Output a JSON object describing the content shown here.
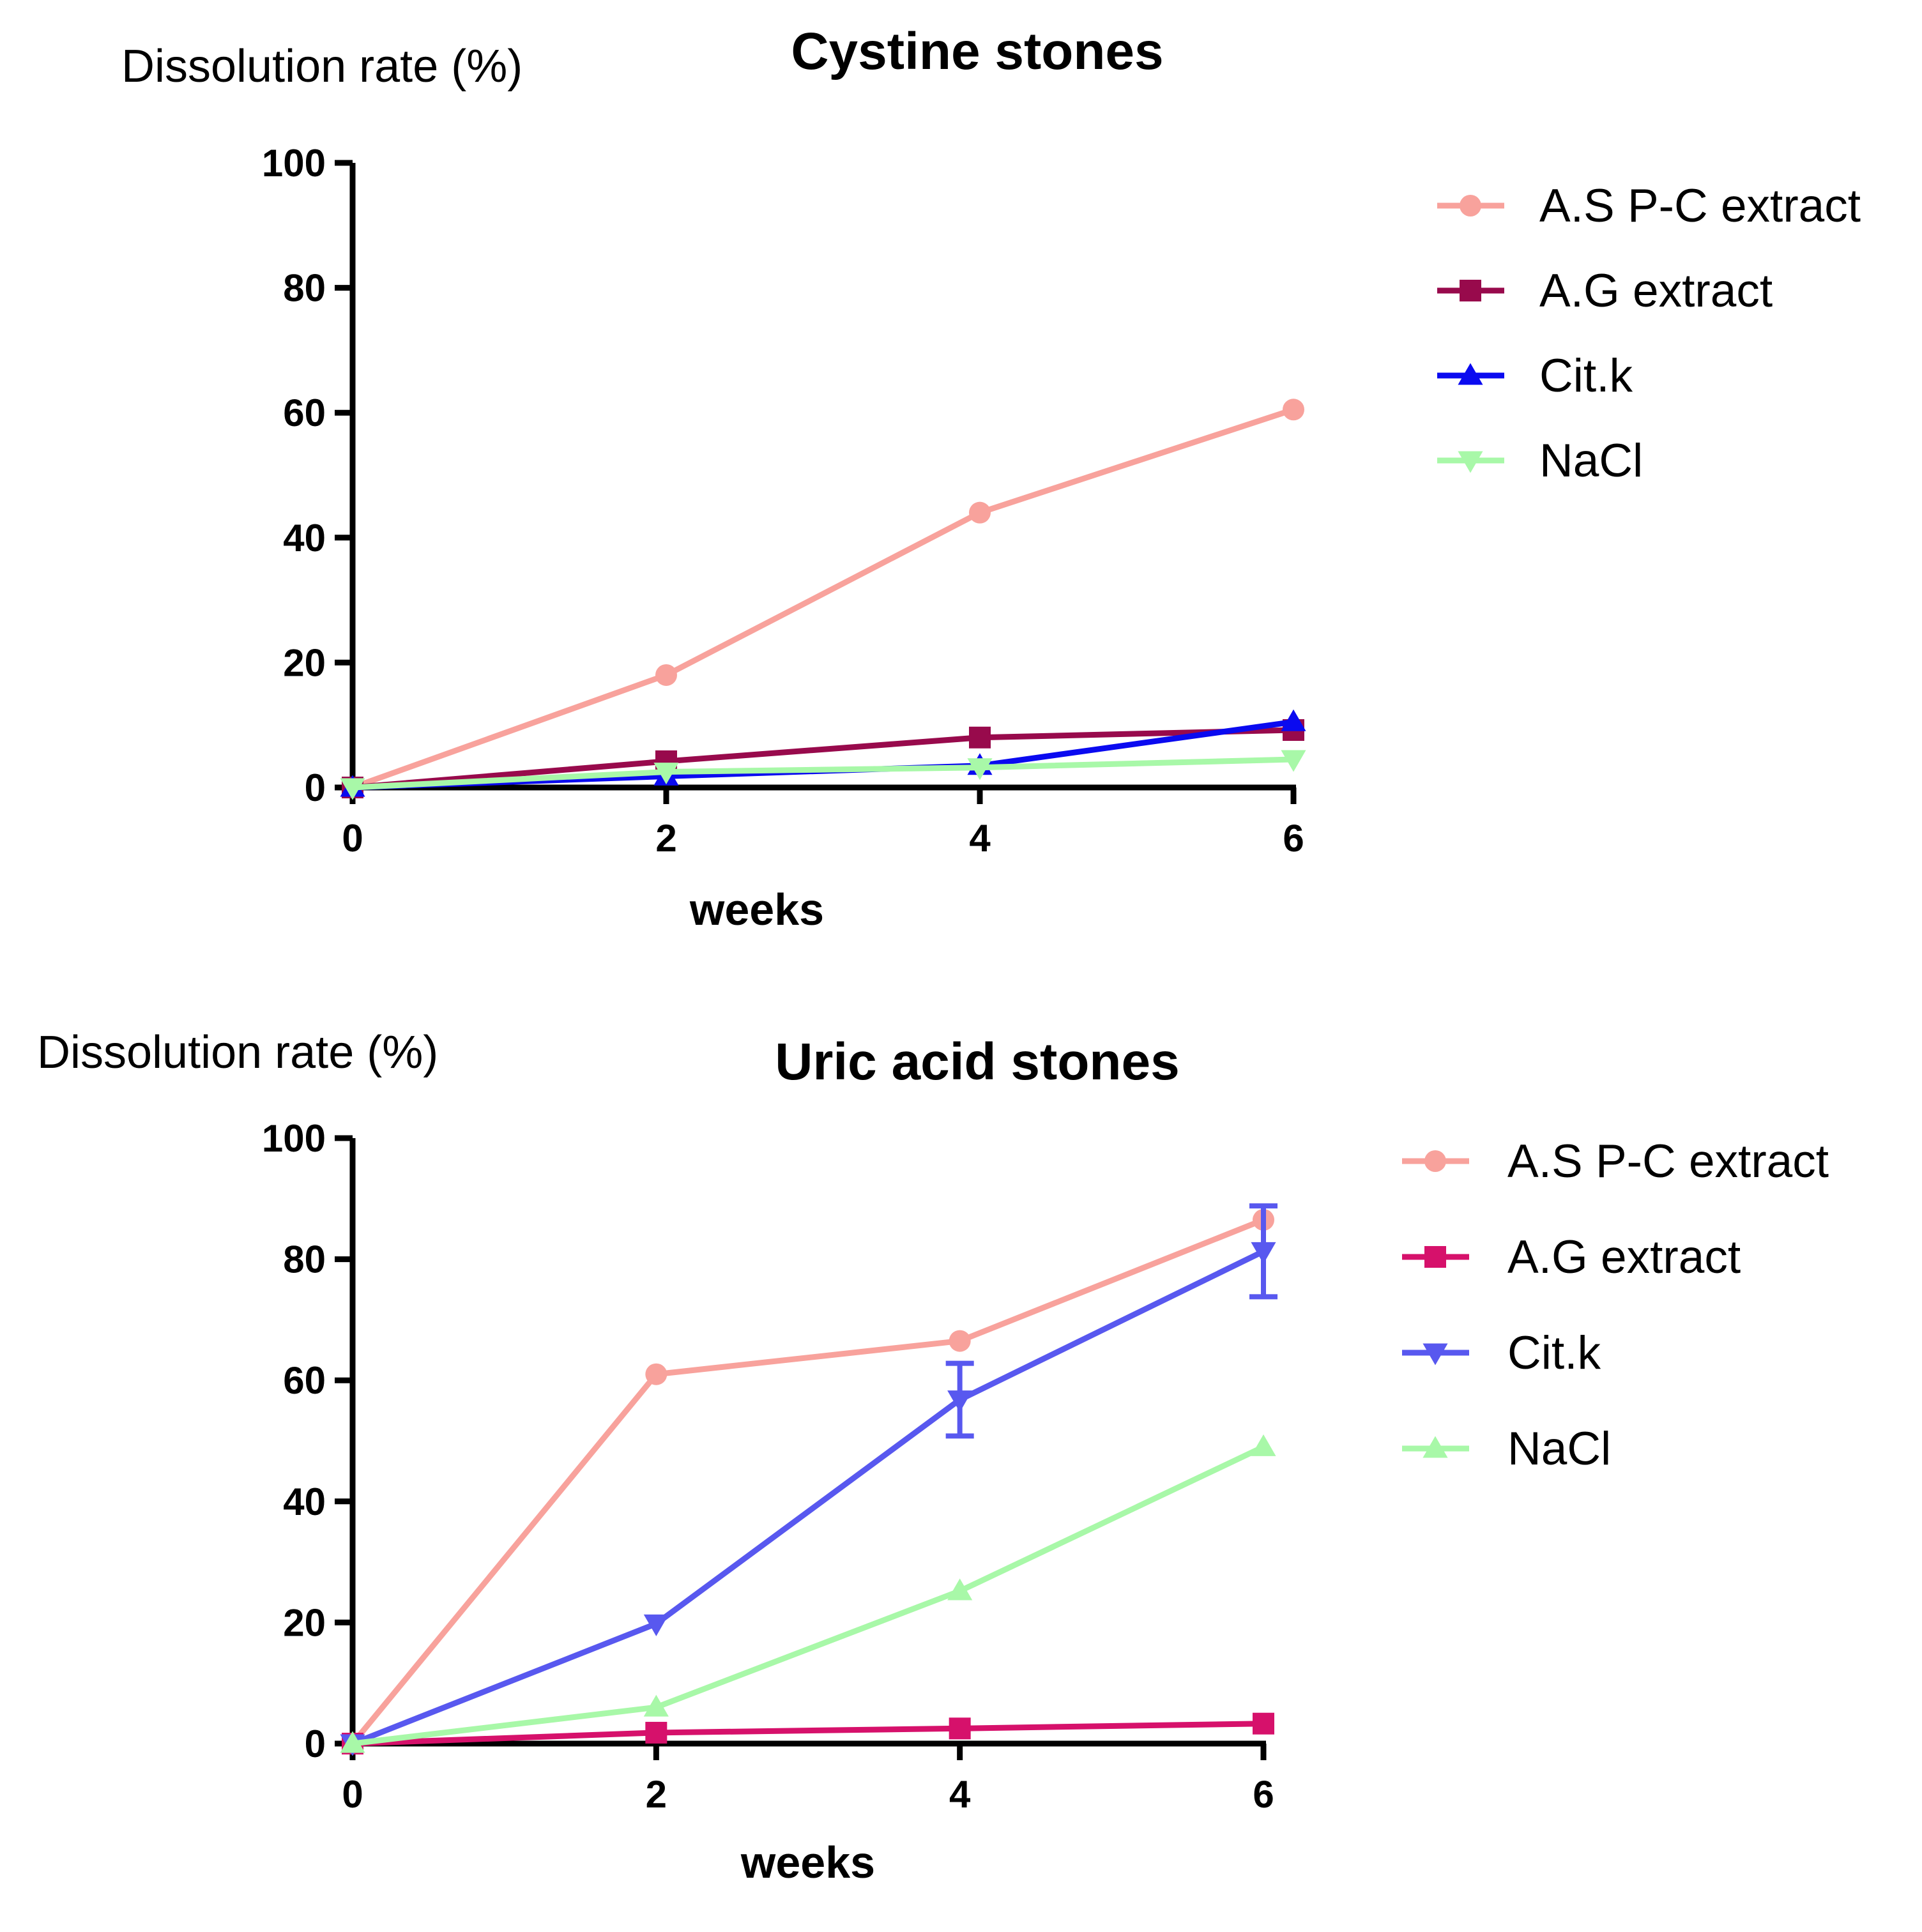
{
  "colors": {
    "as_pc_extract": "#f8a29c",
    "ag_extract_top": "#980a4c",
    "ag_extract_bottom": "#d6116b",
    "cit_k_top": "#0a0af0",
    "cit_k_bottom": "#5858ef",
    "nacl": "#a8f8a8",
    "axis": "#000000"
  },
  "chart_data": [
    {
      "type": "line",
      "title": "Cystine stones",
      "ylabel": "Dissolution rate (%)",
      "xlabel": "weeks",
      "x": [
        0,
        2,
        4,
        6
      ],
      "xlim": [
        0,
        6
      ],
      "ylim": [
        0,
        100
      ],
      "xticks": [
        "0",
        "2",
        "4",
        "6"
      ],
      "yticks": [
        "0",
        "20",
        "40",
        "60",
        "80",
        "100"
      ],
      "legend_position": "right",
      "series": [
        {
          "name": "A.S P-C extract",
          "marker": "circle",
          "color": "#f8a29c",
          "values": [
            0,
            18,
            44,
            60.5
          ]
        },
        {
          "name": "A.G extract",
          "marker": "square",
          "color": "#980a4c",
          "values": [
            0,
            4.2,
            8,
            9.2
          ]
        },
        {
          "name": "Cit.k",
          "marker": "triangle-up",
          "color": "#0a0af0",
          "values": [
            0,
            1.8,
            3.5,
            10.5
          ]
        },
        {
          "name": "NaCl",
          "marker": "triangle-down",
          "color": "#a8f8a8",
          "values": [
            0,
            2.5,
            3.2,
            4.5
          ]
        }
      ]
    },
    {
      "type": "line",
      "title": "Uric acid stones",
      "ylabel": "Dissolution rate (%)",
      "xlabel": "weeks",
      "x": [
        0,
        2,
        4,
        6
      ],
      "xlim": [
        0,
        6
      ],
      "ylim": [
        0,
        100
      ],
      "xticks": [
        "0",
        "2",
        "4",
        "6"
      ],
      "yticks": [
        "0",
        "20",
        "40",
        "60",
        "80",
        "100"
      ],
      "legend_position": "right",
      "series": [
        {
          "name": "A.S P-C extract",
          "marker": "circle",
          "color": "#f8a29c",
          "values": [
            0,
            61,
            66.5,
            86.5
          ]
        },
        {
          "name": "A.G extract",
          "marker": "square",
          "color": "#d6116b",
          "values": [
            0,
            1.8,
            2.5,
            3.3
          ]
        },
        {
          "name": "Cit.k",
          "marker": "triangle-down",
          "color": "#5858ef",
          "values": [
            0,
            19.8,
            56.8,
            81.3
          ],
          "error": [
            0,
            0,
            6,
            7.5
          ]
        },
        {
          "name": "NaCl",
          "marker": "triangle-up",
          "color": "#a8f8a8",
          "values": [
            0,
            6,
            25.2,
            49
          ]
        }
      ]
    }
  ]
}
